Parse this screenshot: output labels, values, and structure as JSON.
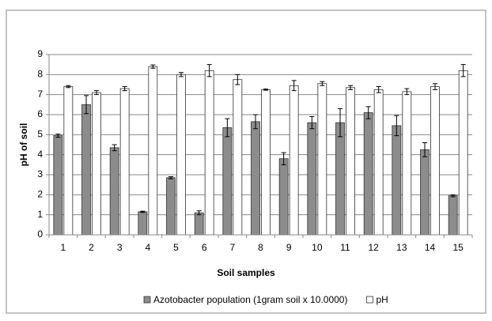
{
  "chart_data": {
    "type": "bar",
    "x_label": "Soil samples",
    "y_label": "pH of soil",
    "categories": [
      "1",
      "2",
      "3",
      "4",
      "5",
      "6",
      "7",
      "8",
      "9",
      "10",
      "11",
      "12",
      "13",
      "14",
      "15"
    ],
    "series": [
      {
        "name": "Azotobacter population (1gram soil x 10.0000)",
        "color": "#8c8c8c",
        "values": [
          4.95,
          6.5,
          4.35,
          1.15,
          2.85,
          1.1,
          5.35,
          5.65,
          3.8,
          5.6,
          5.6,
          6.1,
          5.45,
          4.25,
          1.95
        ],
        "errors": [
          0.08,
          0.45,
          0.15,
          0.03,
          0.05,
          0.1,
          0.45,
          0.35,
          0.3,
          0.3,
          0.7,
          0.3,
          0.5,
          0.35,
          0.05
        ]
      },
      {
        "name": "pH",
        "color": "#ffffff",
        "values": [
          7.4,
          7.1,
          7.3,
          8.4,
          8.0,
          8.2,
          7.75,
          7.25,
          7.45,
          7.55,
          7.35,
          7.25,
          7.15,
          7.4,
          8.2
        ],
        "errors": [
          0.05,
          0.1,
          0.1,
          0.08,
          0.1,
          0.3,
          0.25,
          0.03,
          0.25,
          0.1,
          0.1,
          0.15,
          0.15,
          0.15,
          0.3
        ]
      }
    ],
    "ylim": [
      0,
      9
    ],
    "yticks": [
      0,
      1,
      2,
      3,
      4,
      5,
      6,
      7,
      8,
      9
    ],
    "grid": true,
    "legend": "bottom"
  }
}
